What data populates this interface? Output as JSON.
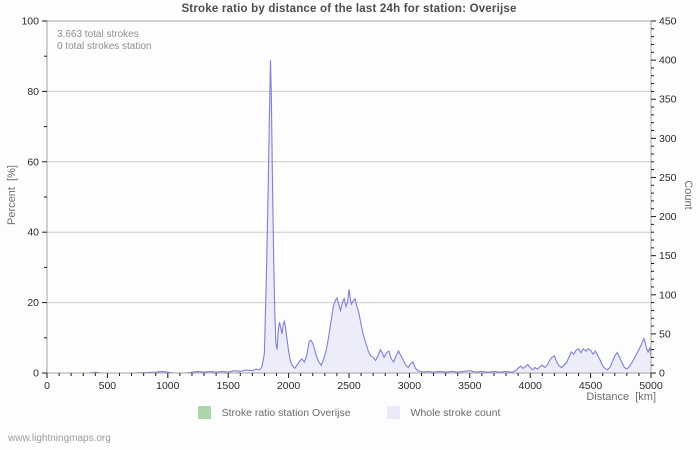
{
  "watermark": "www.lightningmaps.org",
  "chart_data": {
    "type": "area",
    "title": "Stroke ratio by distance of the last 24h for station: Overijse",
    "annotations": [
      "3.663 total strokes",
      "0 total strokes station"
    ],
    "x_axis": {
      "label": "Distance  [km]",
      "min": 0,
      "max": 5000,
      "major_tick": 500,
      "minor_tick": 100
    },
    "y_axis_left": {
      "label": "Percent  [%]",
      "min": 0,
      "max": 100,
      "major_tick": 20,
      "minor_tick": 10
    },
    "y_axis_right": {
      "label": "Count",
      "min": 0,
      "max": 450,
      "major_tick": 50,
      "minor_tick": 10
    },
    "grid": "horizontal-only",
    "legend_position": "bottom",
    "frame_color": "#a3a3a3",
    "grid_color": "#cccccc",
    "tick_color": "#1a1a1a",
    "series": [
      {
        "name": "Stroke ratio station Overijse",
        "type": "area",
        "axis": "left",
        "line_color": "#abd6ab",
        "fill_color": "#abd6ab",
        "points": [
          [
            0,
            0
          ],
          [
            5000,
            0
          ]
        ]
      },
      {
        "name": "Whole stroke count",
        "type": "area",
        "axis": "right",
        "line_color": "#7f7fd6",
        "fill_color": "#e9e9f8",
        "points": [
          [
            0,
            0
          ],
          [
            350,
            0
          ],
          [
            400,
            1
          ],
          [
            450,
            0
          ],
          [
            700,
            0
          ],
          [
            900,
            1
          ],
          [
            950,
            2
          ],
          [
            1000,
            1
          ],
          [
            1050,
            0
          ],
          [
            1150,
            0
          ],
          [
            1200,
            1
          ],
          [
            1250,
            2
          ],
          [
            1300,
            1
          ],
          [
            1350,
            2
          ],
          [
            1400,
            1
          ],
          [
            1450,
            2
          ],
          [
            1500,
            1
          ],
          [
            1550,
            3
          ],
          [
            1600,
            2
          ],
          [
            1650,
            4
          ],
          [
            1700,
            3
          ],
          [
            1730,
            5
          ],
          [
            1760,
            4
          ],
          [
            1780,
            8
          ],
          [
            1800,
            25
          ],
          [
            1815,
            120
          ],
          [
            1830,
            230
          ],
          [
            1840,
            320
          ],
          [
            1850,
            400
          ],
          [
            1858,
            350
          ],
          [
            1865,
            260
          ],
          [
            1875,
            160
          ],
          [
            1885,
            80
          ],
          [
            1895,
            38
          ],
          [
            1905,
            30
          ],
          [
            1915,
            55
          ],
          [
            1925,
            65
          ],
          [
            1935,
            58
          ],
          [
            1945,
            50
          ],
          [
            1955,
            62
          ],
          [
            1965,
            66
          ],
          [
            1975,
            58
          ],
          [
            1985,
            45
          ],
          [
            2000,
            28
          ],
          [
            2015,
            15
          ],
          [
            2030,
            10
          ],
          [
            2050,
            6
          ],
          [
            2070,
            10
          ],
          [
            2090,
            15
          ],
          [
            2110,
            18
          ],
          [
            2130,
            14
          ],
          [
            2150,
            22
          ],
          [
            2170,
            40
          ],
          [
            2185,
            42
          ],
          [
            2200,
            38
          ],
          [
            2215,
            30
          ],
          [
            2230,
            22
          ],
          [
            2250,
            14
          ],
          [
            2270,
            10
          ],
          [
            2290,
            18
          ],
          [
            2310,
            28
          ],
          [
            2330,
            45
          ],
          [
            2350,
            65
          ],
          [
            2370,
            85
          ],
          [
            2385,
            92
          ],
          [
            2400,
            96
          ],
          [
            2415,
            88
          ],
          [
            2430,
            80
          ],
          [
            2445,
            90
          ],
          [
            2460,
            95
          ],
          [
            2475,
            85
          ],
          [
            2490,
            92
          ],
          [
            2500,
            107
          ],
          [
            2510,
            96
          ],
          [
            2520,
            88
          ],
          [
            2535,
            92
          ],
          [
            2550,
            95
          ],
          [
            2565,
            85
          ],
          [
            2580,
            78
          ],
          [
            2600,
            62
          ],
          [
            2620,
            48
          ],
          [
            2640,
            38
          ],
          [
            2660,
            28
          ],
          [
            2680,
            22
          ],
          [
            2700,
            20
          ],
          [
            2720,
            16
          ],
          [
            2740,
            22
          ],
          [
            2760,
            30
          ],
          [
            2775,
            26
          ],
          [
            2790,
            20
          ],
          [
            2810,
            26
          ],
          [
            2830,
            28
          ],
          [
            2850,
            18
          ],
          [
            2870,
            14
          ],
          [
            2890,
            22
          ],
          [
            2910,
            28
          ],
          [
            2930,
            22
          ],
          [
            2950,
            16
          ],
          [
            2970,
            10
          ],
          [
            2990,
            7
          ],
          [
            3010,
            12
          ],
          [
            3030,
            14
          ],
          [
            3050,
            6
          ],
          [
            3070,
            3
          ],
          [
            3090,
            2
          ],
          [
            3120,
            1
          ],
          [
            3150,
            2
          ],
          [
            3200,
            1
          ],
          [
            3250,
            2
          ],
          [
            3300,
            1
          ],
          [
            3350,
            2
          ],
          [
            3400,
            1
          ],
          [
            3450,
            2
          ],
          [
            3500,
            3
          ],
          [
            3550,
            1
          ],
          [
            3600,
            2
          ],
          [
            3650,
            1
          ],
          [
            3700,
            2
          ],
          [
            3750,
            1
          ],
          [
            3800,
            2
          ],
          [
            3850,
            1
          ],
          [
            3880,
            3
          ],
          [
            3900,
            6
          ],
          [
            3920,
            9
          ],
          [
            3940,
            6
          ],
          [
            3960,
            8
          ],
          [
            3980,
            11
          ],
          [
            4000,
            7
          ],
          [
            4020,
            4
          ],
          [
            4040,
            7
          ],
          [
            4060,
            5
          ],
          [
            4080,
            8
          ],
          [
            4100,
            10
          ],
          [
            4120,
            7
          ],
          [
            4140,
            10
          ],
          [
            4160,
            16
          ],
          [
            4180,
            20
          ],
          [
            4200,
            22
          ],
          [
            4220,
            14
          ],
          [
            4240,
            9
          ],
          [
            4260,
            7
          ],
          [
            4280,
            10
          ],
          [
            4300,
            13
          ],
          [
            4320,
            20
          ],
          [
            4340,
            27
          ],
          [
            4360,
            24
          ],
          [
            4380,
            29
          ],
          [
            4400,
            31
          ],
          [
            4420,
            26
          ],
          [
            4440,
            31
          ],
          [
            4460,
            28
          ],
          [
            4480,
            31
          ],
          [
            4500,
            29
          ],
          [
            4520,
            24
          ],
          [
            4540,
            28
          ],
          [
            4560,
            22
          ],
          [
            4580,
            16
          ],
          [
            4600,
            9
          ],
          [
            4620,
            6
          ],
          [
            4640,
            4
          ],
          [
            4660,
            7
          ],
          [
            4680,
            14
          ],
          [
            4700,
            22
          ],
          [
            4720,
            26
          ],
          [
            4740,
            20
          ],
          [
            4760,
            13
          ],
          [
            4780,
            7
          ],
          [
            4800,
            5
          ],
          [
            4820,
            8
          ],
          [
            4840,
            13
          ],
          [
            4860,
            18
          ],
          [
            4880,
            24
          ],
          [
            4900,
            30
          ],
          [
            4920,
            36
          ],
          [
            4940,
            44
          ],
          [
            4950,
            40
          ],
          [
            4960,
            33
          ],
          [
            4975,
            27
          ],
          [
            4990,
            32
          ],
          [
            5000,
            20
          ]
        ]
      }
    ]
  }
}
